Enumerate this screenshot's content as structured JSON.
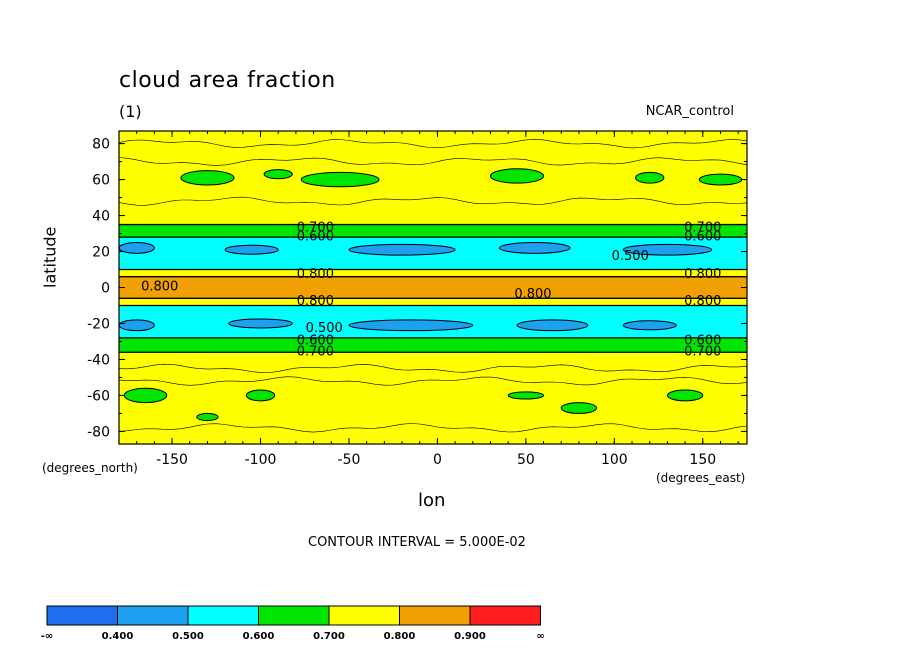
{
  "header": {
    "title": "cloud area fraction",
    "subtitle": "(1)",
    "dataset": "NCAR_control"
  },
  "footer": {
    "contour_interval": "CONTOUR INTERVAL = 5.000E-02"
  },
  "chart_data": {
    "type": "heatmap",
    "subtype": "filled-contour latitude-longitude map",
    "xlabel": "lon",
    "ylabel": "latitude",
    "x_units": "(degrees_east)",
    "y_units": "(degrees_north)",
    "xlim": [
      -180,
      175
    ],
    "ylim": [
      -87,
      87
    ],
    "x_ticks": [
      -150,
      -100,
      -50,
      0,
      50,
      100,
      150
    ],
    "y_ticks": [
      80,
      60,
      40,
      20,
      0,
      -20,
      -40,
      -60,
      -80
    ],
    "zonal_profile": {
      "description_levels": "zonal mean cloud area fraction by latitude band",
      "bands": [
        {
          "lat_from": 87,
          "lat_to": 35,
          "level": 0.75
        },
        {
          "lat_from": 35,
          "lat_to": 28,
          "level": 0.65
        },
        {
          "lat_from": 28,
          "lat_to": 10,
          "level": 0.55
        },
        {
          "lat_from": 10,
          "lat_to": 6,
          "level": 0.75
        },
        {
          "lat_from": 6,
          "lat_to": -6,
          "level": 0.85
        },
        {
          "lat_from": -6,
          "lat_to": -10,
          "level": 0.75
        },
        {
          "lat_from": -10,
          "lat_to": -28,
          "level": 0.55
        },
        {
          "lat_from": -28,
          "lat_to": -36,
          "level": 0.65
        },
        {
          "lat_from": -36,
          "lat_to": -87,
          "level": 0.75
        }
      ]
    },
    "patches": [
      {
        "level": 0.65,
        "lon": -130,
        "lat": 61,
        "rx": 15,
        "ry": 4
      },
      {
        "level": 0.65,
        "lon": -90,
        "lat": 63,
        "rx": 8,
        "ry": 2.5
      },
      {
        "level": 0.65,
        "lon": -55,
        "lat": 60,
        "rx": 22,
        "ry": 4
      },
      {
        "level": 0.65,
        "lon": 45,
        "lat": 62,
        "rx": 15,
        "ry": 4
      },
      {
        "level": 0.65,
        "lon": 120,
        "lat": 61,
        "rx": 8,
        "ry": 3
      },
      {
        "level": 0.65,
        "lon": 160,
        "lat": 60,
        "rx": 12,
        "ry": 3
      },
      {
        "level": 0.45,
        "lon": -170,
        "lat": 22,
        "rx": 10,
        "ry": 3
      },
      {
        "level": 0.45,
        "lon": -105,
        "lat": 21,
        "rx": 15,
        "ry": 2.5
      },
      {
        "level": 0.45,
        "lon": -20,
        "lat": 21,
        "rx": 30,
        "ry": 3
      },
      {
        "level": 0.45,
        "lon": 55,
        "lat": 22,
        "rx": 20,
        "ry": 3
      },
      {
        "level": 0.45,
        "lon": 130,
        "lat": 21,
        "rx": 25,
        "ry": 3
      },
      {
        "level": 0.45,
        "lon": -170,
        "lat": -21,
        "rx": 10,
        "ry": 3
      },
      {
        "level": 0.45,
        "lon": -100,
        "lat": -20,
        "rx": 18,
        "ry": 2.5
      },
      {
        "level": 0.45,
        "lon": -15,
        "lat": -21,
        "rx": 35,
        "ry": 3
      },
      {
        "level": 0.45,
        "lon": 65,
        "lat": -21,
        "rx": 20,
        "ry": 3
      },
      {
        "level": 0.45,
        "lon": 120,
        "lat": -21,
        "rx": 15,
        "ry": 2.5
      },
      {
        "level": 0.65,
        "lon": -165,
        "lat": -60,
        "rx": 12,
        "ry": 4
      },
      {
        "level": 0.65,
        "lon": -100,
        "lat": -60,
        "rx": 8,
        "ry": 3
      },
      {
        "level": 0.65,
        "lon": 50,
        "lat": -60,
        "rx": 10,
        "ry": 2
      },
      {
        "level": 0.65,
        "lon": 140,
        "lat": -60,
        "rx": 10,
        "ry": 3
      },
      {
        "level": 0.65,
        "lon": 80,
        "lat": -67,
        "rx": 10,
        "ry": 3
      },
      {
        "level": 0.65,
        "lon": -130,
        "lat": -72,
        "rx": 6,
        "ry": 2
      }
    ],
    "contour_labels": [
      {
        "text": "0.700",
        "lon": -69,
        "lat": 34
      },
      {
        "text": "0.600",
        "lon": -69,
        "lat": 29
      },
      {
        "text": "0.700",
        "lon": 150,
        "lat": 34
      },
      {
        "text": "0.600",
        "lon": 150,
        "lat": 29
      },
      {
        "text": "0.500",
        "lon": 109,
        "lat": 18
      },
      {
        "text": "0.800",
        "lon": -69,
        "lat": 8
      },
      {
        "text": "0.800",
        "lon": -157,
        "lat": 1
      },
      {
        "text": "0.800",
        "lon": 54,
        "lat": -3
      },
      {
        "text": "0.800",
        "lon": 150,
        "lat": 8
      },
      {
        "text": "0.800",
        "lon": -69,
        "lat": -7
      },
      {
        "text": "0.800",
        "lon": 150,
        "lat": -7
      },
      {
        "text": "0.500",
        "lon": -64,
        "lat": -22
      },
      {
        "text": "0.600",
        "lon": -69,
        "lat": -29
      },
      {
        "text": "0.700",
        "lon": -69,
        "lat": -35
      },
      {
        "text": "0.600",
        "lon": 150,
        "lat": -29
      },
      {
        "text": "0.700",
        "lon": 150,
        "lat": -35
      }
    ],
    "colorbar": {
      "bins": [
        {
          "color": "#1e6ef0",
          "label": "-∞"
        },
        {
          "color": "#1ea0f0",
          "label": "0.400"
        },
        {
          "color": "#00ffff",
          "label": "0.500"
        },
        {
          "color": "#00e600",
          "label": "0.600"
        },
        {
          "color": "#ffff00",
          "label": "0.700"
        },
        {
          "color": "#f0a000",
          "label": "0.800"
        },
        {
          "color": "#ff1e1e",
          "label": "0.900"
        }
      ],
      "end_label": "∞"
    }
  }
}
